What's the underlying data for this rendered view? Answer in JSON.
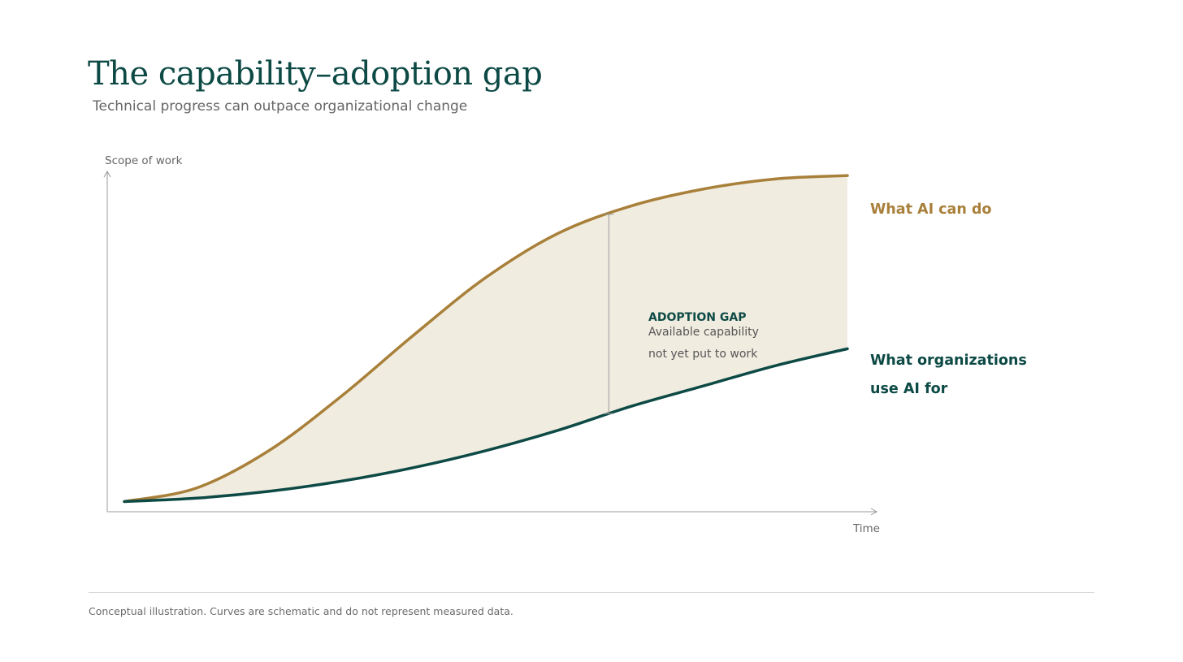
{
  "header": {
    "title": "The capability–adoption gap",
    "subtitle": "Technical progress can outpace organizational change"
  },
  "footer": {
    "note": "Conceptual illustration. Curves are schematic and do not represent measured data."
  },
  "chart_data": {
    "type": "line",
    "ylabel": "Scope of work",
    "xlabel": "Time",
    "x_ticks": [],
    "y_ticks": [],
    "grid": false,
    "legend": "direct labels at right end of each series",
    "xlim": [
      0,
      100
    ],
    "ylim": [
      0,
      100
    ],
    "series": [
      {
        "name": "What AI can do",
        "color": "#a8803a",
        "x": [
          0,
          10,
          20,
          30,
          40,
          50,
          60,
          70,
          80,
          90,
          100
        ],
        "y": [
          3,
          7,
          18,
          34,
          52,
          69,
          82,
          90,
          95,
          98,
          99
        ]
      },
      {
        "name": "What organizations use AI for",
        "color": "#0d4a45",
        "x": [
          0,
          10,
          20,
          30,
          40,
          50,
          60,
          70,
          80,
          90,
          100
        ],
        "y": [
          3,
          4,
          6,
          9,
          13,
          18,
          24,
          31,
          37,
          43,
          48
        ]
      }
    ],
    "annotations": [
      {
        "heading": "ADOPTION GAP",
        "lines": [
          "Available capability",
          "not yet put to work"
        ],
        "x": 67,
        "color": "#0d4a45"
      }
    ],
    "gap_fill_color": "#f1ece0",
    "axis_color": "#999999"
  }
}
